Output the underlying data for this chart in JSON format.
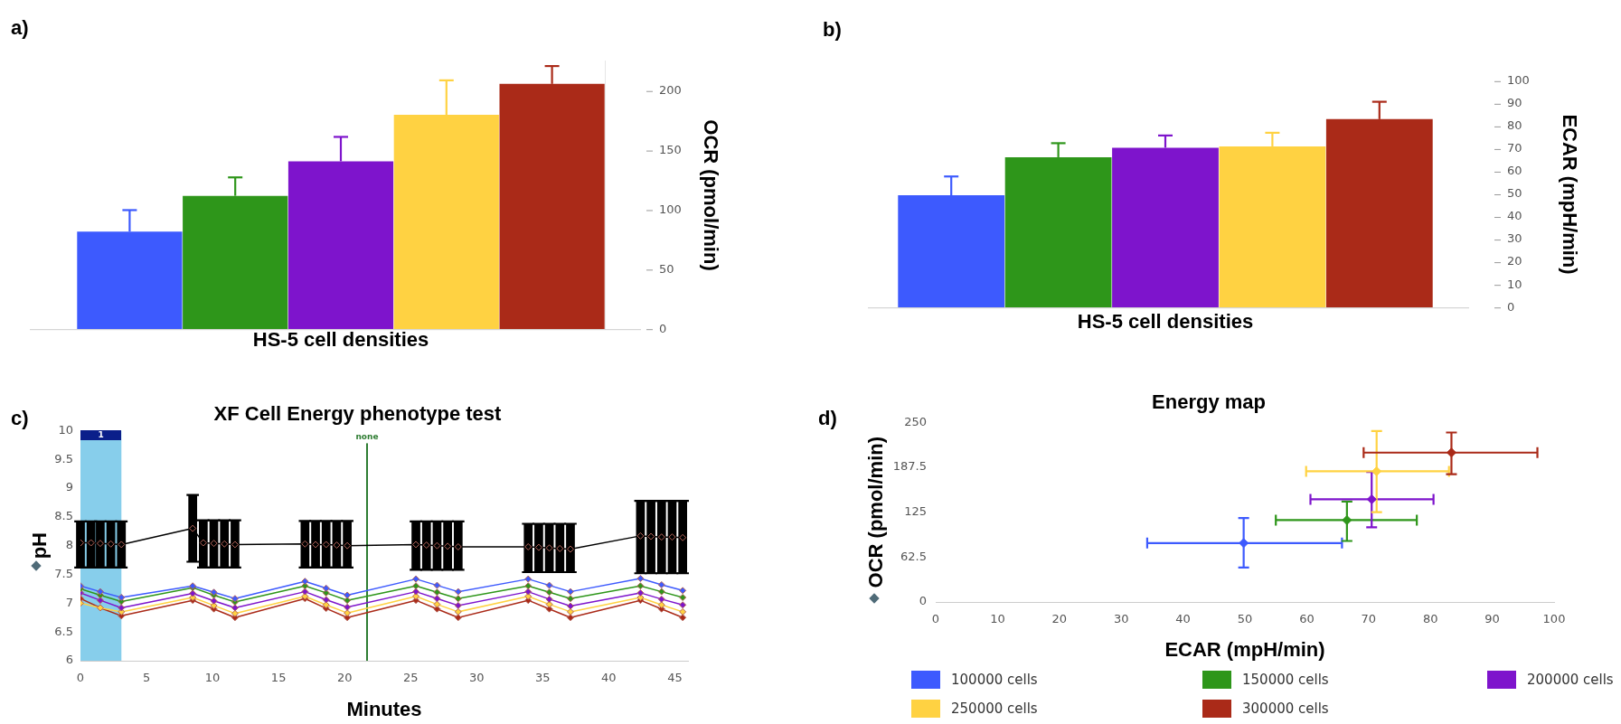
{
  "chart_data": [
    {
      "type": "bar",
      "annotations": [
        "a)"
      ],
      "xlabel": "HS-5 cell densities",
      "ylabel": "OCR (pmol/min)",
      "categories": [
        null,
        null,
        null,
        null,
        null
      ],
      "values": [
        82,
        112,
        141,
        180,
        206
      ],
      "colors": [
        "#3d5afe",
        "#2e961a",
        "#7e14cc",
        "#ffd242",
        "#aa2a18"
      ],
      "errors": [
        [
          82,
          100
        ],
        [
          112,
          127.5
        ],
        [
          141,
          161.5
        ],
        [
          180,
          209
        ],
        [
          206,
          221
        ]
      ],
      "ylim": [
        0,
        225
      ],
      "yticks": [
        0,
        50,
        100,
        150,
        200
      ]
    },
    {
      "type": "bar",
      "annotations": [
        "b)"
      ],
      "xlabel": "HS-5 cell densities",
      "ylabel": "ECAR (mpH/min)",
      "categories": [
        null,
        null,
        null,
        null,
        null
      ],
      "values": [
        49.6,
        66.4,
        70.6,
        71.2,
        83.2
      ],
      "colors": [
        "#3d5afe",
        "#2e961a",
        "#7e14cc",
        "#ffd242",
        "#aa2a18"
      ],
      "errors": [
        [
          49.6,
          57.9
        ],
        [
          66.4,
          72.6
        ],
        [
          70.6,
          76
        ],
        [
          71.2,
          77.2
        ],
        [
          83.2,
          90.9
        ]
      ],
      "ylim": [
        0,
        100
      ],
      "yticks": [
        0,
        10,
        20,
        30,
        40,
        50,
        60,
        70,
        80,
        90,
        100
      ]
    },
    {
      "type": "line",
      "annotations": [
        "c)"
      ],
      "title": "XF Cell Energy phenotype test",
      "xlabel": "Minutes",
      "ylabel": "pH",
      "marker": "diamond",
      "xlim": [
        0,
        46
      ],
      "xticks": [
        0,
        5,
        10,
        15,
        20,
        25,
        30,
        35,
        40,
        45
      ],
      "ylim": [
        6,
        10
      ],
      "yticks": [
        6,
        6.5,
        7,
        7.5,
        8,
        8.5,
        9,
        9.5,
        10
      ],
      "bands": [
        {
          "axis": "x",
          "from": 0,
          "to": 3.1,
          "label": "1",
          "color": "#87ceeb"
        }
      ],
      "ref_lines": [
        {
          "axis": "x",
          "value": 21.7,
          "label": "none",
          "color": "#2e7d32"
        }
      ],
      "series": [
        {
          "color": "#3d5afe",
          "x": [
            0,
            1.5,
            3.1,
            8.5,
            10.1,
            11.7,
            17,
            18.6,
            20.2,
            25.4,
            27,
            28.6,
            33.9,
            35.5,
            37.1,
            42.4,
            44,
            45.6
          ],
          "values": [
            7.3,
            7.2,
            7.1,
            7.3,
            7.19,
            7.08,
            7.38,
            7.26,
            7.14,
            7.42,
            7.31,
            7.2,
            7.42,
            7.31,
            7.2,
            7.43,
            7.32,
            7.22
          ]
        },
        {
          "color": "#2e961a",
          "x": [
            0,
            1.5,
            3.1,
            8.5,
            10.1,
            11.7,
            17,
            18.6,
            20.2,
            25.4,
            27,
            28.6,
            33.9,
            35.5,
            37.1,
            42.4,
            44,
            45.6
          ],
          "values": [
            7.25,
            7.14,
            7.03,
            7.27,
            7.14,
            7.02,
            7.3,
            7.18,
            7.05,
            7.3,
            7.19,
            7.08,
            7.3,
            7.19,
            7.08,
            7.3,
            7.2,
            7.1
          ]
        },
        {
          "color": "#7e14cc",
          "x": [
            0,
            1.5,
            3.1,
            8.5,
            10.1,
            11.7,
            17,
            18.6,
            20.2,
            25.4,
            27,
            28.6,
            33.9,
            35.5,
            37.1,
            42.4,
            44,
            45.6
          ],
          "values": [
            7.18,
            7.05,
            6.92,
            7.17,
            7.04,
            6.92,
            7.2,
            7.06,
            6.93,
            7.2,
            7.08,
            6.96,
            7.2,
            7.07,
            6.95,
            7.18,
            7.07,
            6.97
          ]
        },
        {
          "color": "#ffd242",
          "x": [
            0,
            1.5,
            3.1,
            8.5,
            10.1,
            11.7,
            17,
            18.6,
            20.2,
            25.4,
            27,
            28.6,
            33.9,
            35.5,
            37.1,
            42.4,
            44,
            45.6
          ],
          "values": [
            7.0,
            6.92,
            6.85,
            7.1,
            6.96,
            6.82,
            7.12,
            6.97,
            6.83,
            7.12,
            6.98,
            6.85,
            7.12,
            6.98,
            6.85,
            7.1,
            6.97,
            6.85
          ]
        },
        {
          "color": "#aa2a18",
          "x": [
            0,
            1.5,
            3.1,
            8.5,
            10.1,
            11.7,
            17,
            18.6,
            20.2,
            25.4,
            27,
            28.6,
            33.9,
            35.5,
            37.1,
            42.4,
            44,
            45.6
          ],
          "values": [
            7.08,
            6.92,
            6.78,
            7.05,
            6.9,
            6.75,
            7.08,
            6.91,
            6.75,
            7.05,
            6.9,
            6.75,
            7.05,
            6.9,
            6.75,
            7.05,
            6.9,
            6.75
          ]
        },
        {
          "color": "#000000",
          "x": [
            0,
            0.8,
            1.5,
            2.3,
            3.1,
            8.5,
            9.3,
            10.1,
            10.9,
            11.7,
            17,
            17.8,
            18.6,
            19.4,
            20.2,
            25.4,
            26.2,
            27,
            27.8,
            28.6,
            33.9,
            34.7,
            35.5,
            36.3,
            37.1,
            42.4,
            43.2,
            44,
            44.8,
            45.6
          ],
          "values": [
            8.05,
            8.05,
            8.04,
            8.03,
            8.02,
            8.3,
            8.05,
            8.04,
            8.03,
            8.02,
            8.03,
            8.02,
            8.02,
            8.01,
            8.0,
            8.02,
            8.01,
            8.0,
            7.99,
            7.98,
            7.98,
            7.97,
            7.96,
            7.95,
            7.94,
            8.17,
            8.16,
            8.15,
            8.15,
            8.14
          ],
          "errors": [
            [
              7.62,
              8.42
            ],
            [
              7.62,
              8.42
            ],
            [
              7.62,
              8.42
            ],
            [
              7.62,
              8.42
            ],
            [
              7.62,
              8.42
            ],
            [
              7.72,
              8.88
            ],
            [
              7.62,
              8.44
            ],
            [
              7.62,
              8.44
            ],
            [
              7.62,
              8.44
            ],
            [
              7.62,
              8.44
            ],
            [
              7.62,
              8.43
            ],
            [
              7.62,
              8.43
            ],
            [
              7.62,
              8.43
            ],
            [
              7.62,
              8.43
            ],
            [
              7.62,
              8.43
            ],
            [
              7.58,
              8.42
            ],
            [
              7.58,
              8.42
            ],
            [
              7.58,
              8.42
            ],
            [
              7.58,
              8.42
            ],
            [
              7.58,
              8.42
            ],
            [
              7.54,
              8.38
            ],
            [
              7.54,
              8.38
            ],
            [
              7.54,
              8.38
            ],
            [
              7.54,
              8.38
            ],
            [
              7.54,
              8.38
            ],
            [
              7.52,
              8.78
            ],
            [
              7.52,
              8.78
            ],
            [
              7.52,
              8.78
            ],
            [
              7.52,
              8.78
            ],
            [
              7.52,
              8.78
            ]
          ]
        }
      ]
    },
    {
      "type": "scatter",
      "annotations": [
        "d)"
      ],
      "title": "Energy map",
      "xlabel": "ECAR (mpH/min)",
      "ylabel": "OCR (pmol/min)",
      "marker": "diamond",
      "legend": "bottom",
      "xlim": [
        0,
        100
      ],
      "xticks": [
        0,
        10,
        20,
        30,
        40,
        50,
        60,
        70,
        80,
        90,
        100
      ],
      "ylim": [
        0,
        250
      ],
      "yticks": [
        0,
        62.5,
        125,
        187.5,
        250
      ],
      "series": [
        {
          "name": "100000 cells",
          "color": "#3d5afe",
          "x": [
            49.8
          ],
          "values": [
            82
          ],
          "errors": [
            [
              48,
              117
            ]
          ],
          "xerrors": [
            [
              34.2,
              65.7
            ]
          ]
        },
        {
          "name": "150000 cells",
          "color": "#2e961a",
          "x": [
            66.5
          ],
          "values": [
            114
          ],
          "errors": [
            [
              85,
              140
            ]
          ],
          "xerrors": [
            [
              55,
              77.8
            ]
          ]
        },
        {
          "name": "200000 cells",
          "color": "#7e14cc",
          "x": [
            70.5
          ],
          "values": [
            143
          ],
          "errors": [
            [
              104,
              181
            ]
          ],
          "xerrors": [
            [
              60.6,
              80.5
            ]
          ]
        },
        {
          "name": "250000 cells",
          "color": "#ffd242",
          "x": [
            71.3
          ],
          "values": [
            182
          ],
          "errors": [
            [
              125,
              238
            ]
          ],
          "xerrors": [
            [
              59.9,
              83
            ]
          ]
        },
        {
          "name": "300000 cells",
          "color": "#aa2a18",
          "x": [
            83.4
          ],
          "values": [
            208
          ],
          "errors": [
            [
              178,
              236
            ]
          ],
          "xerrors": [
            [
              69.2,
              97.3
            ]
          ]
        }
      ]
    }
  ]
}
